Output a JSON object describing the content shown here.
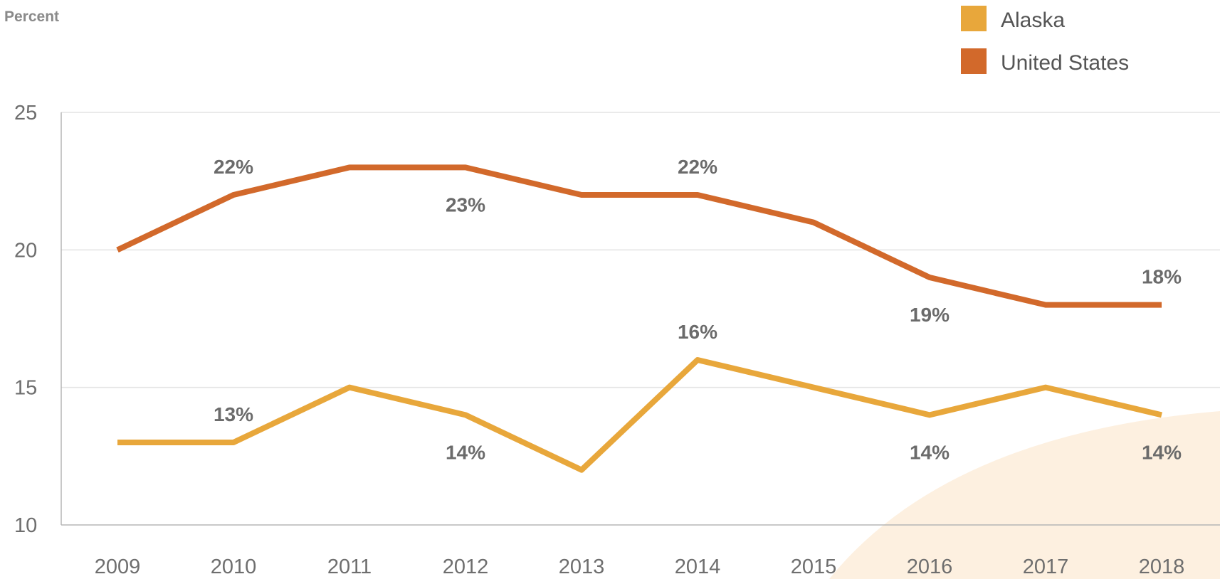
{
  "chart_data": {
    "type": "line",
    "ylabel": "Percent",
    "ylim": [
      10,
      25
    ],
    "yticks": [
      10,
      15,
      20,
      25
    ],
    "x": [
      "2009",
      "2010",
      "2011",
      "2012",
      "2013",
      "2014",
      "2015",
      "2016",
      "2017",
      "2018"
    ],
    "grid": true,
    "legend_position": "top-right",
    "series": [
      {
        "name": "Alaska",
        "color": "#E8A73B",
        "values": [
          13,
          13,
          15,
          14,
          12,
          16,
          15,
          14,
          15,
          14
        ],
        "labels": [
          {
            "x": "2010",
            "text": "13%",
            "position": "above"
          },
          {
            "x": "2012",
            "text": "14%",
            "position": "below"
          },
          {
            "x": "2014",
            "text": "16%",
            "position": "above"
          },
          {
            "x": "2016",
            "text": "14%",
            "position": "below"
          },
          {
            "x": "2018",
            "text": "14%",
            "position": "below"
          }
        ]
      },
      {
        "name": "United States",
        "color": "#D2692B",
        "values": [
          20,
          22,
          23,
          23,
          22,
          22,
          21,
          19,
          18,
          18
        ],
        "labels": [
          {
            "x": "2010",
            "text": "22%",
            "position": "above"
          },
          {
            "x": "2012",
            "text": "23%",
            "position": "below"
          },
          {
            "x": "2014",
            "text": "22%",
            "position": "above"
          },
          {
            "x": "2016",
            "text": "19%",
            "position": "below"
          },
          {
            "x": "2018",
            "text": "18%",
            "position": "above"
          }
        ]
      }
    ]
  },
  "decor": {
    "corner_color": "#FDF0E0"
  }
}
